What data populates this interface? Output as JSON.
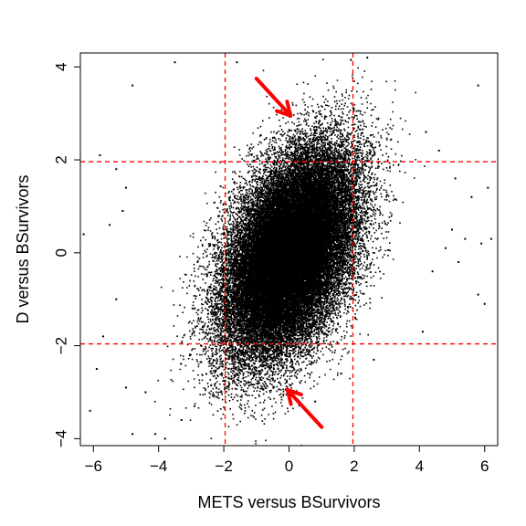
{
  "chart_data": {
    "type": "scatter",
    "title": "",
    "xlabel": "METS versus BSurvivors",
    "ylabel": "D versus BSurvivors",
    "xlim": [
      -6.4,
      6.4
    ],
    "ylim": [
      -4.15,
      4.3
    ],
    "x_ticks": [
      -6,
      -4,
      -2,
      0,
      2,
      4,
      6
    ],
    "y_ticks": [
      -4,
      -2,
      0,
      2,
      4
    ],
    "grid": false,
    "point_color": "#000000",
    "reference_line_color": "#ff0000",
    "vertical_reference_lines": [
      -1.96,
      1.96
    ],
    "horizontal_reference_lines": [
      -1.96,
      1.96
    ],
    "distribution": {
      "mean_x": 0.0,
      "mean_y": 0.0,
      "sd_x": 1.0,
      "sd_y": 1.1,
      "correlation": 0.45
    },
    "outliers": [
      {
        "x": -4.8,
        "y": 3.6
      },
      {
        "x": -3.5,
        "y": 4.1
      },
      {
        "x": -1.6,
        "y": 4.1
      },
      {
        "x": 1.9,
        "y": 4.15
      },
      {
        "x": 2.4,
        "y": 4.2
      },
      {
        "x": 5.8,
        "y": 3.6
      },
      {
        "x": -5.8,
        "y": 2.1
      },
      {
        "x": -5.3,
        "y": 1.8
      },
      {
        "x": -5.0,
        "y": 1.4
      },
      {
        "x": -6.3,
        "y": 0.4
      },
      {
        "x": -5.5,
        "y": 0.6
      },
      {
        "x": -5.1,
        "y": 0.9
      },
      {
        "x": 4.2,
        "y": 2.6
      },
      {
        "x": 4.6,
        "y": 2.2
      },
      {
        "x": 5.1,
        "y": 1.6
      },
      {
        "x": 5.6,
        "y": 1.2
      },
      {
        "x": 6.1,
        "y": 1.4
      },
      {
        "x": 5.0,
        "y": 0.5
      },
      {
        "x": 5.4,
        "y": 0.3
      },
      {
        "x": 5.9,
        "y": 0.2
      },
      {
        "x": 6.2,
        "y": 0.3
      },
      {
        "x": 4.8,
        "y": 0.1
      },
      {
        "x": 5.2,
        "y": -0.2
      },
      {
        "x": 4.4,
        "y": -0.4
      },
      {
        "x": 5.8,
        "y": -0.9
      },
      {
        "x": 6.0,
        "y": -1.1
      },
      {
        "x": 4.1,
        "y": -1.7
      },
      {
        "x": -5.3,
        "y": -1.0
      },
      {
        "x": -5.7,
        "y": -1.8
      },
      {
        "x": -5.9,
        "y": -2.5
      },
      {
        "x": -6.1,
        "y": -3.4
      },
      {
        "x": -4.8,
        "y": -3.9
      },
      {
        "x": -4.1,
        "y": -3.9
      },
      {
        "x": -3.8,
        "y": -4.0
      },
      {
        "x": -3.3,
        "y": -3.6
      },
      {
        "x": -2.9,
        "y": -3.3
      },
      {
        "x": 0.8,
        "y": -3.2
      },
      {
        "x": 1.6,
        "y": -2.6
      },
      {
        "x": 2.6,
        "y": -2.3
      },
      {
        "x": -4.4,
        "y": -3.0
      },
      {
        "x": -5.0,
        "y": -2.9
      }
    ],
    "annotations": [
      {
        "type": "arrow",
        "from": {
          "x": -1.0,
          "y": 3.75
        },
        "to": {
          "x": 0.05,
          "y": 2.95
        },
        "color": "#ff0000"
      },
      {
        "type": "arrow",
        "from": {
          "x": 1.0,
          "y": -3.75
        },
        "to": {
          "x": -0.05,
          "y": -2.95
        },
        "color": "#ff0000"
      }
    ]
  }
}
